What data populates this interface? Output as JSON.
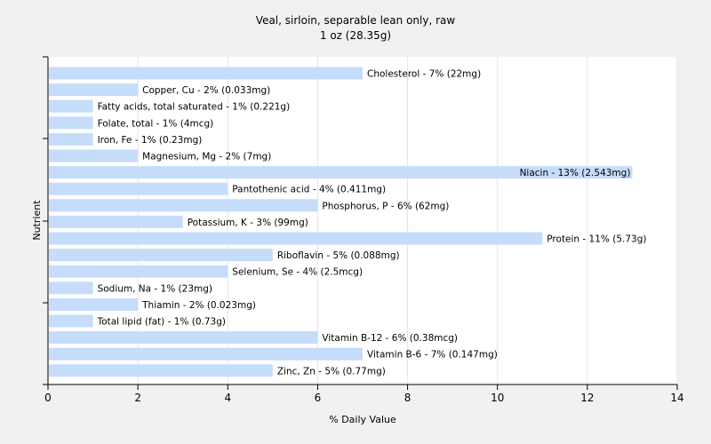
{
  "chart_data": {
    "type": "bar",
    "orientation": "horizontal",
    "title": "Veal, sirloin, separable lean only, raw",
    "subtitle": "1 oz (28.35g)",
    "xlabel": "% Daily Value",
    "ylabel": "Nutrient",
    "xlim": [
      0,
      14
    ],
    "xticks": [
      "0",
      "2",
      "4",
      "6",
      "8",
      "10",
      "12",
      "14"
    ],
    "grid": true,
    "bar_color": "#c5dcfb",
    "categories": [
      "Cholesterol",
      "Copper, Cu",
      "Fatty acids, total saturated",
      "Folate, total",
      "Iron, Fe",
      "Magnesium, Mg",
      "Niacin",
      "Pantothenic acid",
      "Phosphorus, P",
      "Potassium, K",
      "Protein",
      "Riboflavin",
      "Selenium, Se",
      "Sodium, Na",
      "Thiamin",
      "Total lipid (fat)",
      "Vitamin B-12",
      "Vitamin B-6",
      "Zinc, Zn"
    ],
    "values": [
      7,
      2,
      1,
      1,
      1,
      2,
      13,
      4,
      6,
      3,
      11,
      5,
      4,
      1,
      2,
      1,
      6,
      7,
      5
    ],
    "labels": [
      "Cholesterol - 7% (22mg)",
      "Copper, Cu - 2% (0.033mg)",
      "Fatty acids, total saturated - 1% (0.221g)",
      "Folate, total - 1% (4mcg)",
      "Iron, Fe - 1% (0.23mg)",
      "Magnesium, Mg - 2% (7mg)",
      "Niacin - 13% (2.543mg)",
      "Pantothenic acid - 4% (0.411mg)",
      "Phosphorus, P - 6% (62mg)",
      "Potassium, K - 3% (99mg)",
      "Protein - 11% (5.73g)",
      "Riboflavin - 5% (0.088mg)",
      "Selenium, Se - 4% (2.5mcg)",
      "Sodium, Na - 1% (23mg)",
      "Thiamin - 2% (0.023mg)",
      "Total lipid (fat) - 1% (0.73g)",
      "Vitamin B-12 - 6% (0.38mcg)",
      "Vitamin B-6 - 7% (0.147mg)",
      "Zinc, Zn - 5% (0.77mg)"
    ]
  }
}
